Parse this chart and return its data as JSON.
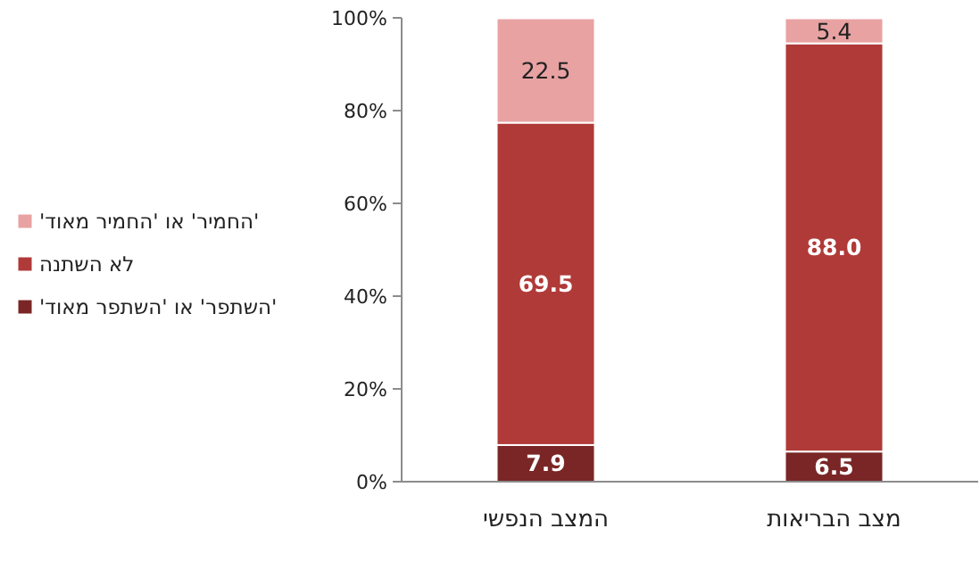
{
  "chart_data": {
    "type": "bar",
    "stacked": true,
    "categories": [
      "המצב הנפשי",
      "מצב הבריאות"
    ],
    "series": [
      {
        "name": "'השתפר' או 'השתפר מאוד'",
        "color": "#7a2626",
        "values": [
          7.9,
          6.5
        ],
        "value_labels": [
          "7.9",
          "6.5"
        ]
      },
      {
        "name": "לא השתנה",
        "color": "#b03a38",
        "values": [
          69.5,
          88.0
        ],
        "value_labels": [
          "69.5",
          "88.0"
        ]
      },
      {
        "name": "'החמיר' או 'החמיר מאוד'",
        "color": "#e8a2a2",
        "values": [
          22.5,
          5.4
        ],
        "value_labels": [
          "22.5",
          "5.4"
        ]
      }
    ],
    "ylim": [
      0,
      100
    ],
    "yticks": [
      {
        "value": 0,
        "label": "0%"
      },
      {
        "value": 20,
        "label": "20%"
      },
      {
        "value": 40,
        "label": "40%"
      },
      {
        "value": 60,
        "label": "60%"
      },
      {
        "value": 80,
        "label": "80%"
      },
      {
        "value": 100,
        "label": "100%"
      }
    ],
    "grid": false,
    "legend": "left"
  }
}
